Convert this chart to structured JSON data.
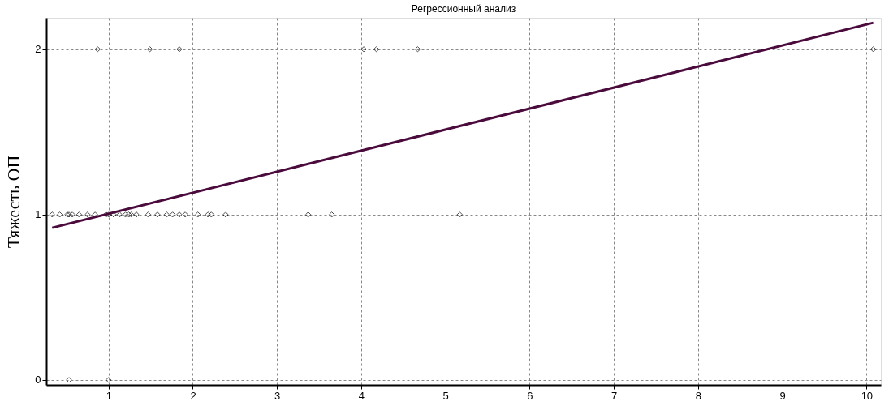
{
  "chart_data": {
    "type": "scatter",
    "title": "Регрессионный анализ",
    "ylabel": "Тяжесть ОП",
    "xlim": [
      0.26,
      10.17
    ],
    "ylim": [
      -0.03,
      2.19
    ],
    "xticks": [
      1,
      2,
      3,
      4,
      5,
      6,
      7,
      8,
      9,
      10
    ],
    "yticks": [
      0,
      1,
      2
    ],
    "grid": true,
    "series": [
      {
        "color": "#000000",
        "marker": "diamond",
        "x": [
          0.33,
          0.42,
          0.51,
          0.53,
          0.57,
          0.65,
          0.75,
          0.84,
          0.97,
          1.0,
          1.06,
          1.13,
          1.2,
          1.24,
          1.27,
          1.33,
          1.47,
          1.58,
          1.69,
          1.76,
          1.84,
          1.91,
          2.06,
          2.18,
          2.22,
          2.39,
          3.37,
          3.65,
          5.17,
          0.87,
          1.49,
          1.84,
          4.03,
          4.18,
          4.67,
          10.08,
          0.53,
          1.0
        ],
        "values": [
          1,
          1,
          1,
          1,
          1,
          1,
          1,
          1,
          1,
          1,
          1,
          1,
          1,
          1,
          1,
          1,
          1,
          1,
          1,
          1,
          1,
          1,
          1,
          1,
          1,
          1,
          1,
          1,
          1,
          2,
          2,
          2,
          2,
          2,
          2,
          2,
          0,
          0
        ]
      },
      {
        "type": "line",
        "color": "#4b0a3c",
        "line_style": "solid",
        "x": [
          0.33,
          10.08
        ],
        "values": [
          0.92,
          2.16
        ]
      }
    ]
  }
}
